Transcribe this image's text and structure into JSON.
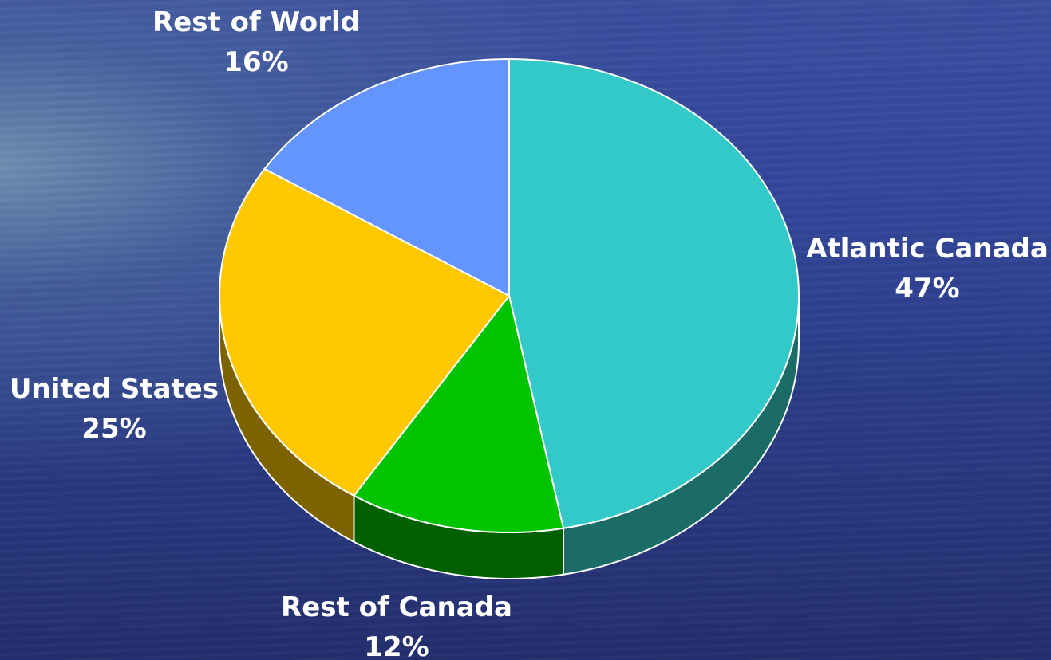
{
  "chart_data": {
    "type": "pie",
    "style": "3d",
    "slices": [
      {
        "label": "Atlantic Canada",
        "value": 47,
        "value_label": "47%",
        "color": "#33c9c9",
        "side_color": "#1b6b66"
      },
      {
        "label": "Rest of Canada",
        "value": 12,
        "value_label": "12%",
        "color": "#00c400",
        "side_color": "#006000"
      },
      {
        "label": "United States",
        "value": 25,
        "value_label": "25%",
        "color": "#ffc800",
        "side_color": "#7d6200"
      },
      {
        "label": "Rest of World",
        "value": 16,
        "value_label": "16%",
        "color": "#6494ff",
        "side_color": "#34509a"
      }
    ],
    "start": "12 o'clock",
    "direction": "clockwise",
    "legend": "none",
    "labels": "outside"
  }
}
